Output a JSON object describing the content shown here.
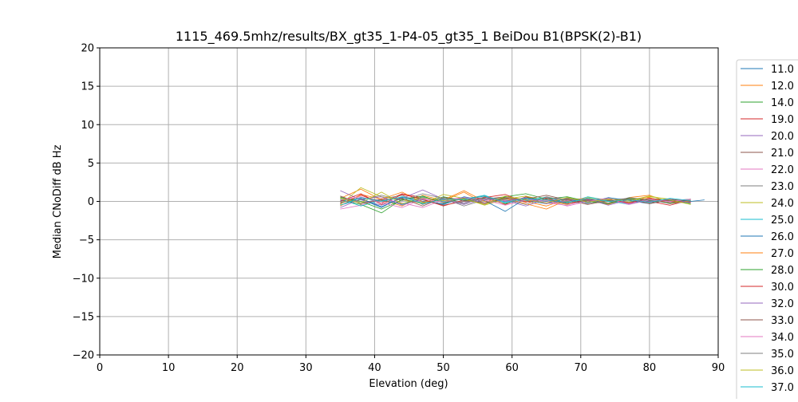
{
  "chart_data": {
    "type": "line",
    "title": "1115_469.5mhz/results/BX_gt35_1-P4-05_gt35_1 BeiDou B1(BPSK(2)-B1)",
    "xlabel": "Elevation (deg)",
    "ylabel": "Median CNoDiff dB Hz",
    "xlim": [
      0,
      90
    ],
    "ylim": [
      -20,
      20
    ],
    "xticks": [
      0,
      10,
      20,
      30,
      40,
      50,
      60,
      70,
      80,
      90
    ],
    "yticks": [
      -20,
      -15,
      -10,
      -5,
      0,
      5,
      10,
      15,
      20
    ],
    "xtick_labels": [
      "0",
      "10",
      "20",
      "30",
      "40",
      "50",
      "60",
      "70",
      "80",
      "90"
    ],
    "ytick_labels": [
      "−20",
      "−15",
      "−10",
      "−5",
      "0",
      "5",
      "10",
      "15",
      "20"
    ],
    "grid": true,
    "legend_position": "right (outside plot, clipped at bottom)",
    "series": [
      {
        "name": "11.0",
        "color": "#1f77b4",
        "x": [
          35,
          38,
          41,
          44,
          47,
          50,
          53,
          56,
          59,
          62,
          65,
          68,
          71,
          74,
          77,
          80,
          83,
          86,
          88
        ],
        "values": [
          -0.5,
          0.3,
          -0.8,
          0.6,
          0.2,
          -0.4,
          0.5,
          -0.2,
          0.3,
          0.1,
          -0.3,
          0.4,
          -0.1,
          0.2,
          -0.3,
          0.1,
          -0.2,
          0.0,
          0.2
        ]
      },
      {
        "name": "12.0",
        "color": "#ff7f0e",
        "x": [
          35,
          38,
          41,
          44,
          47,
          50,
          53,
          56,
          59,
          62,
          65,
          68,
          71,
          74,
          77,
          80,
          83,
          86
        ],
        "values": [
          0.4,
          1.6,
          0.2,
          -0.6,
          0.8,
          0.1,
          1.2,
          -0.3,
          0.5,
          0.0,
          -0.6,
          0.3,
          0.2,
          -0.4,
          0.5,
          0.8,
          -0.2,
          0.1
        ]
      },
      {
        "name": "14.0",
        "color": "#2ca02c",
        "x": [
          35,
          38,
          41,
          44,
          47,
          50,
          53,
          56,
          59,
          62,
          65,
          68,
          71,
          74,
          77,
          80,
          83,
          86
        ],
        "values": [
          0.2,
          -0.4,
          -1.5,
          0.3,
          -0.2,
          0.6,
          0.1,
          0.4,
          -0.3,
          0.5,
          0.2,
          -0.1,
          0.3,
          0.0,
          -0.2,
          0.4,
          0.1,
          -0.3
        ]
      },
      {
        "name": "19.0",
        "color": "#d62728",
        "x": [
          35,
          38,
          41,
          44,
          47,
          50,
          53,
          56,
          59,
          62,
          65,
          68,
          71,
          74,
          77,
          80,
          83,
          86
        ],
        "values": [
          -0.3,
          0.8,
          -0.2,
          1.0,
          0.5,
          -0.1,
          0.3,
          0.7,
          -0.4,
          0.6,
          0.2,
          -0.3,
          0.1,
          0.4,
          -0.2,
          0.0,
          -0.5,
          0.2
        ]
      },
      {
        "name": "20.0",
        "color": "#9467bd",
        "x": [
          35,
          38,
          41,
          44,
          47,
          50,
          53,
          56,
          59,
          62,
          65,
          68,
          71,
          74,
          77,
          80,
          83,
          86
        ],
        "values": [
          1.4,
          0.2,
          -0.5,
          0.4,
          1.5,
          0.3,
          -0.2,
          0.5,
          0.1,
          -0.6,
          0.3,
          0.2,
          -0.1,
          0.4,
          -0.3,
          0.1,
          0.2,
          -0.1
        ]
      },
      {
        "name": "21.0",
        "color": "#8c564b",
        "x": [
          35,
          38,
          41,
          44,
          47,
          50,
          53,
          56,
          59,
          62,
          65,
          68,
          71,
          74,
          77,
          80,
          83,
          86
        ],
        "values": [
          -0.2,
          0.5,
          0.1,
          -0.3,
          0.2,
          -0.5,
          0.0,
          0.3,
          0.6,
          0.2,
          -0.2,
          0.4,
          0.1,
          -0.3,
          0.2,
          -0.1,
          0.3,
          0.0
        ]
      },
      {
        "name": "22.0",
        "color": "#e377c2",
        "x": [
          35,
          38,
          41,
          44,
          47,
          50,
          53,
          56,
          59,
          62,
          65,
          68,
          71,
          74,
          77,
          80,
          83,
          86
        ],
        "values": [
          -1.0,
          -0.5,
          0.4,
          -0.2,
          -0.8,
          0.2,
          0.5,
          -0.3,
          0.1,
          0.4,
          -0.2,
          -0.5,
          0.2,
          0.1,
          -0.3,
          0.3,
          -0.1,
          0.2
        ]
      },
      {
        "name": "23.0",
        "color": "#7f7f7f",
        "x": [
          35,
          38,
          41,
          44,
          47,
          50,
          53,
          56,
          59,
          62,
          65,
          68,
          71,
          74,
          77,
          80,
          83,
          86
        ],
        "values": [
          0.6,
          -0.2,
          0.3,
          0.8,
          -0.4,
          0.4,
          -0.6,
          0.2,
          0.5,
          -0.1,
          0.6,
          0.0,
          -0.3,
          0.2,
          0.4,
          -0.2,
          0.1,
          0.3
        ]
      },
      {
        "name": "24.0",
        "color": "#bcbd22",
        "x": [
          35,
          38,
          41,
          44,
          47,
          50,
          53,
          56,
          59,
          62,
          65,
          68,
          71,
          74,
          77,
          80,
          83,
          86
        ],
        "values": [
          -0.4,
          1.8,
          0.6,
          0.2,
          -0.3,
          0.9,
          0.4,
          -0.5,
          0.3,
          0.7,
          0.1,
          -0.4,
          0.5,
          0.2,
          -0.1,
          0.6,
          0.3,
          -0.2
        ]
      },
      {
        "name": "25.0",
        "color": "#17becf",
        "x": [
          35,
          38,
          41,
          44,
          47,
          50,
          53,
          56,
          59,
          62,
          65,
          68,
          71,
          74,
          77,
          80,
          83,
          86
        ],
        "values": [
          0.3,
          -0.6,
          0.2,
          -0.4,
          0.6,
          0.0,
          0.3,
          0.8,
          -0.2,
          0.2,
          0.5,
          -0.2,
          0.6,
          0.1,
          -0.4,
          0.2,
          0.0,
          0.1
        ]
      },
      {
        "name": "26.0",
        "color": "#1f77b4",
        "x": [
          35,
          38,
          41,
          44,
          47,
          50,
          53,
          56,
          59,
          62,
          65,
          68,
          71,
          74,
          77,
          80,
          83,
          86
        ],
        "values": [
          0.1,
          0.4,
          -0.7,
          0.5,
          0.0,
          -0.3,
          0.6,
          0.1,
          -1.3,
          0.4,
          0.0,
          0.3,
          -0.2,
          0.5,
          0.1,
          -0.3,
          0.2,
          0.0
        ]
      },
      {
        "name": "27.0",
        "color": "#ff7f0e",
        "x": [
          35,
          38,
          41,
          44,
          47,
          50,
          53,
          56,
          59,
          62,
          65,
          68,
          71,
          74,
          77,
          80,
          83,
          86
        ],
        "values": [
          -0.6,
          0.9,
          0.3,
          1.2,
          -0.1,
          0.2,
          1.4,
          0.0,
          0.4,
          -0.3,
          -1.0,
          0.2,
          0.4,
          -0.2,
          0.3,
          0.5,
          -0.3,
          0.1
        ]
      },
      {
        "name": "28.0",
        "color": "#2ca02c",
        "x": [
          35,
          38,
          41,
          44,
          47,
          50,
          53,
          56,
          59,
          62,
          65,
          68,
          71,
          74,
          77,
          80,
          83,
          86
        ],
        "values": [
          0.5,
          0.0,
          -1.0,
          0.2,
          0.7,
          -0.2,
          0.4,
          -0.4,
          0.6,
          1.0,
          0.3,
          0.6,
          0.0,
          -0.3,
          0.4,
          0.1,
          -0.2,
          0.3
        ]
      },
      {
        "name": "30.0",
        "color": "#d62728",
        "x": [
          35,
          38,
          41,
          44,
          47,
          50,
          53,
          56,
          59,
          62,
          65,
          68,
          71,
          74,
          77,
          80,
          83,
          86
        ],
        "values": [
          0.0,
          1.0,
          -0.4,
          0.9,
          0.3,
          -0.6,
          0.2,
          0.5,
          0.9,
          -0.1,
          0.4,
          -0.3,
          0.2,
          0.3,
          -0.2,
          0.4,
          0.0,
          -0.1
        ]
      },
      {
        "name": "32.0",
        "color": "#9467bd",
        "x": [
          35,
          38,
          41,
          44,
          47,
          50,
          53,
          56,
          59,
          62,
          65,
          68,
          71,
          74,
          77,
          80,
          83,
          86
        ],
        "values": [
          -0.8,
          0.3,
          0.6,
          -0.5,
          0.4,
          0.2,
          -0.4,
          0.3,
          0.0,
          0.5,
          -0.3,
          0.1,
          0.3,
          -0.5,
          0.2,
          0.0,
          0.3,
          -0.2
        ]
      },
      {
        "name": "33.0",
        "color": "#8c564b",
        "x": [
          35,
          38,
          41,
          44,
          47,
          50,
          53,
          56,
          59,
          62,
          65,
          68,
          71,
          74,
          77,
          80,
          83,
          86
        ],
        "values": [
          0.7,
          -0.3,
          0.2,
          0.4,
          -0.6,
          0.5,
          0.1,
          -0.2,
          0.4,
          0.3,
          0.8,
          0.2,
          -0.4,
          0.1,
          0.3,
          -0.3,
          0.2,
          0.1
        ]
      },
      {
        "name": "34.0",
        "color": "#e377c2",
        "x": [
          35,
          38,
          41,
          44,
          47,
          50,
          53,
          56,
          59,
          62,
          65,
          68,
          71,
          74,
          77,
          80,
          83,
          86
        ],
        "values": [
          0.2,
          0.6,
          -0.2,
          -0.8,
          0.3,
          -0.1,
          0.5,
          0.2,
          -0.5,
          0.2,
          0.1,
          -0.6,
          0.0,
          0.4,
          -0.4,
          0.2,
          0.0,
          0.3
        ]
      },
      {
        "name": "35.0",
        "color": "#7f7f7f",
        "x": [
          35,
          38,
          41,
          44,
          47,
          50,
          53,
          56,
          59,
          62,
          65,
          68,
          71,
          74,
          77,
          80,
          83,
          86
        ],
        "values": [
          -0.1,
          0.2,
          0.8,
          0.1,
          1.0,
          0.4,
          -0.3,
          0.6,
          0.2,
          -0.4,
          0.5,
          0.3,
          0.1,
          -0.2,
          0.5,
          0.2,
          -0.3,
          0.0
        ]
      },
      {
        "name": "36.0",
        "color": "#bcbd22",
        "x": [
          35,
          38,
          41,
          44,
          47,
          50,
          53,
          56,
          59,
          62,
          65,
          68,
          71,
          74,
          77,
          80,
          83,
          86
        ],
        "values": [
          0.4,
          -0.2,
          1.2,
          -0.3,
          0.5,
          0.1,
          0.3,
          -0.4,
          0.7,
          0.2,
          -0.2,
          0.5,
          -0.1,
          0.3,
          0.1,
          0.7,
          0.2,
          -0.4
        ]
      },
      {
        "name": "37.0",
        "color": "#17becf",
        "x": [
          35,
          38,
          41,
          44,
          47,
          50,
          53,
          56,
          59,
          62,
          65,
          68,
          71,
          74,
          77,
          80,
          83,
          86
        ],
        "values": [
          -0.5,
          0.5,
          0.0,
          0.6,
          -0.3,
          0.3,
          0.2,
          0.7,
          -0.1,
          0.4,
          0.2,
          -0.2,
          0.4,
          0.0,
          0.2,
          -0.1,
          0.4,
          0.1
        ]
      }
    ]
  }
}
